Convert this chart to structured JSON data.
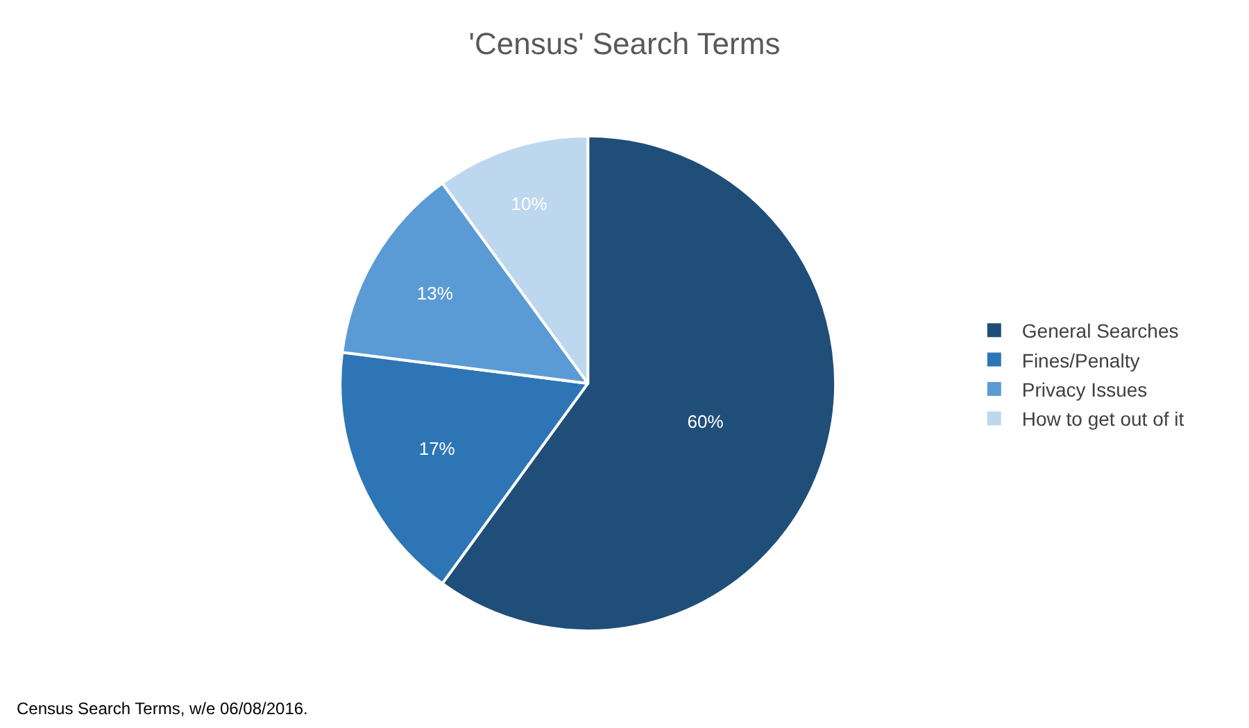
{
  "chart_data": {
    "type": "pie",
    "title": "'Census' Search Terms",
    "categories": [
      "General Searches",
      "Fines/Penalty",
      "Privacy Issues",
      "How to get out of it"
    ],
    "values": [
      60,
      17,
      13,
      10
    ],
    "value_labels": [
      "60%",
      "17%",
      "13%",
      "10%"
    ],
    "colors": [
      "#1f4e79",
      "#2e75b6",
      "#5b9bd5",
      "#bdd7ee"
    ],
    "legend": "right",
    "annotations": [
      "Census Search Terms, w/e 06/08/2016."
    ]
  }
}
